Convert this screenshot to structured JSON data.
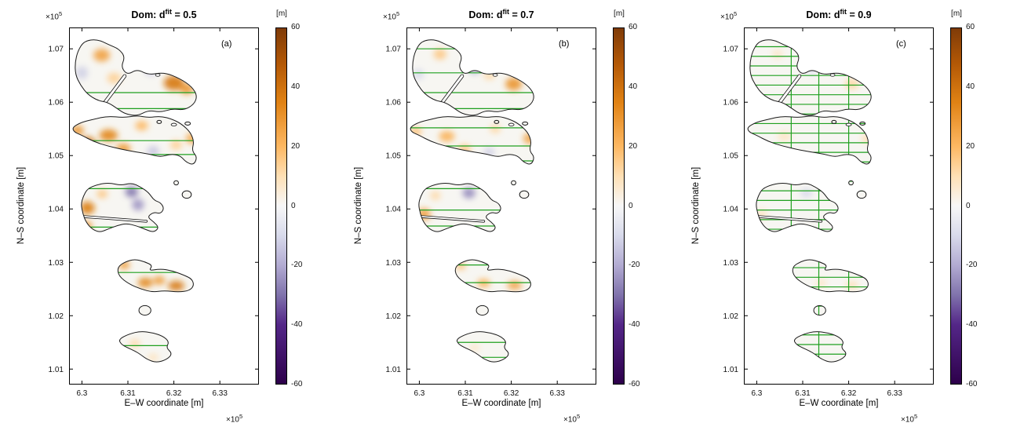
{
  "chart_data": {
    "type": "heatmap",
    "x_label": "E–W coordinate [m]",
    "y_label": "N–S coordinate [m]",
    "axis_exp_base": "×10",
    "axis_exp_power": "5",
    "x_tick_values": [
      6.3,
      6.31,
      6.32,
      6.33
    ],
    "x_tick_labels": [
      "6.3",
      "6.31",
      "6.32",
      "6.33"
    ],
    "y_tick_values": [
      1.01,
      1.02,
      1.03,
      1.04,
      1.05,
      1.06,
      1.07
    ],
    "y_tick_labels": [
      "1.01",
      "1.02",
      "1.03",
      "1.04",
      "1.05",
      "1.06",
      "1.07"
    ],
    "x_range": [
      6.2972,
      6.3385
    ],
    "y_range": [
      1.0071,
      1.074
    ],
    "grid": false,
    "colors": {
      "land": "#f7f6f2",
      "outline": "#1a1a1a",
      "flightline": "#1fa01f",
      "sea": "#ffffff"
    },
    "colorbar": {
      "label": "[m]",
      "min": -60,
      "max": 60,
      "ticks": [
        60,
        40,
        20,
        0,
        -20,
        -40,
        -60
      ],
      "stops": [
        [
          -60,
          "#2d004b"
        ],
        [
          -40,
          "#542788"
        ],
        [
          -30,
          "#8073ac"
        ],
        [
          -20,
          "#b2abd2"
        ],
        [
          -10,
          "#d8daeb"
        ],
        [
          0,
          "#f7f7f7"
        ],
        [
          10,
          "#fee0b6"
        ],
        [
          20,
          "#fdb863"
        ],
        [
          35,
          "#e08214"
        ],
        [
          48,
          "#b35806"
        ],
        [
          60,
          "#7f3b08"
        ]
      ]
    },
    "islands": [
      {
        "name": "north-island",
        "pts": [
          [
            6.2991,
            1.0696
          ],
          [
            6.3005,
            1.0715
          ],
          [
            6.3034,
            1.0718
          ],
          [
            6.306,
            1.0707
          ],
          [
            6.308,
            1.07
          ],
          [
            6.3094,
            1.0685
          ],
          [
            6.3085,
            1.0666
          ],
          [
            6.3099,
            1.0651
          ],
          [
            6.312,
            1.0662
          ],
          [
            6.3145,
            1.0651
          ],
          [
            6.3179,
            1.0656
          ],
          [
            6.3214,
            1.0644
          ],
          [
            6.3239,
            1.0629
          ],
          [
            6.3251,
            1.0612
          ],
          [
            6.3244,
            1.0596
          ],
          [
            6.3222,
            1.0585
          ],
          [
            6.3197,
            1.0588
          ],
          [
            6.3171,
            1.0581
          ],
          [
            6.3145,
            1.0585
          ],
          [
            6.312,
            1.0574
          ],
          [
            6.3094,
            1.0578
          ],
          [
            6.3077,
            1.0588
          ],
          [
            6.3056,
            1.06
          ],
          [
            6.3034,
            1.0603
          ],
          [
            6.3012,
            1.0615
          ],
          [
            6.2997,
            1.0632
          ],
          [
            6.2986,
            1.0651
          ],
          [
            6.2985,
            1.0674
          ]
        ]
      },
      {
        "name": "large-central-island",
        "pts": [
          [
            6.2979,
            1.0553
          ],
          [
            6.3,
            1.0563
          ],
          [
            6.3026,
            1.0568
          ],
          [
            6.3056,
            1.0574
          ],
          [
            6.3091,
            1.0571
          ],
          [
            6.312,
            1.0575
          ],
          [
            6.3145,
            1.0571
          ],
          [
            6.3171,
            1.0574
          ],
          [
            6.3197,
            1.0568
          ],
          [
            6.3217,
            1.0559
          ],
          [
            6.3236,
            1.0544
          ],
          [
            6.3244,
            1.0526
          ],
          [
            6.3239,
            1.0509
          ],
          [
            6.3251,
            1.0497
          ],
          [
            6.3243,
            1.0482
          ],
          [
            6.3226,
            1.0488
          ],
          [
            6.3214,
            1.05
          ],
          [
            6.3193,
            1.0503
          ],
          [
            6.3171,
            1.0497
          ],
          [
            6.3145,
            1.0503
          ],
          [
            6.3115,
            1.0507
          ],
          [
            6.3085,
            1.0512
          ],
          [
            6.3056,
            1.0518
          ],
          [
            6.3026,
            1.0526
          ],
          [
            6.3,
            1.0538
          ],
          [
            6.2983,
            1.0544
          ]
        ]
      },
      {
        "name": "middle-island",
        "pts": [
          [
            6.3012,
            1.0438
          ],
          [
            6.3034,
            1.0446
          ],
          [
            6.306,
            1.0449
          ],
          [
            6.3085,
            1.0444
          ],
          [
            6.3108,
            1.0449
          ],
          [
            6.3128,
            1.0441
          ],
          [
            6.3145,
            1.0431
          ],
          [
            6.3157,
            1.0416
          ],
          [
            6.3171,
            1.0412
          ],
          [
            6.3179,
            1.0401
          ],
          [
            6.3171,
            1.0391
          ],
          [
            6.3156,
            1.0394
          ],
          [
            6.3142,
            1.0385
          ],
          [
            6.3156,
            1.0376
          ],
          [
            6.3168,
            1.0365
          ],
          [
            6.3156,
            1.0356
          ],
          [
            6.3137,
            1.0362
          ],
          [
            6.312,
            1.0368
          ],
          [
            6.3097,
            1.0373
          ],
          [
            6.3077,
            1.0369
          ],
          [
            6.3056,
            1.0362
          ],
          [
            6.3039,
            1.0356
          ],
          [
            6.3022,
            1.0362
          ],
          [
            6.3009,
            1.0375
          ],
          [
            6.3002,
            1.0391
          ],
          [
            6.2998,
            1.0409
          ],
          [
            6.3003,
            1.0424
          ]
        ]
      },
      {
        "name": "lower-island",
        "pts": [
          [
            6.3077,
            1.0291
          ],
          [
            6.3094,
            1.0301
          ],
          [
            6.3115,
            1.0306
          ],
          [
            6.3137,
            1.0301
          ],
          [
            6.3154,
            1.0294
          ],
          [
            6.3145,
            1.0284
          ],
          [
            6.3171,
            1.0288
          ],
          [
            6.3197,
            1.0284
          ],
          [
            6.3222,
            1.0276
          ],
          [
            6.3239,
            1.0269
          ],
          [
            6.3244,
            1.0257
          ],
          [
            6.3234,
            1.0247
          ],
          [
            6.321,
            1.0244
          ],
          [
            6.3179,
            1.0247
          ],
          [
            6.3154,
            1.0244
          ],
          [
            6.3128,
            1.025
          ],
          [
            6.3103,
            1.0259
          ],
          [
            6.308,
            1.0274
          ]
        ]
      },
      {
        "name": "south-island",
        "pts": [
          [
            6.308,
            1.0156
          ],
          [
            6.3103,
            1.0166
          ],
          [
            6.3128,
            1.0171
          ],
          [
            6.3154,
            1.0168
          ],
          [
            6.3176,
            1.0162
          ],
          [
            6.319,
            1.0151
          ],
          [
            6.3183,
            1.014
          ],
          [
            6.3197,
            1.0129
          ],
          [
            6.3185,
            1.0118
          ],
          [
            6.3162,
            1.0112
          ],
          [
            6.3142,
            1.0118
          ],
          [
            6.3128,
            1.0127
          ],
          [
            6.3115,
            1.0134
          ],
          [
            6.3097,
            1.0141
          ],
          [
            6.3085,
            1.0147
          ]
        ]
      }
    ],
    "islets": [
      [
        6.3228,
        1.0427,
        0.001,
        0.0007
      ],
      [
        6.3137,
        1.021,
        0.0013,
        0.0009
      ],
      [
        6.3205,
        1.0449,
        0.0005,
        0.0004
      ],
      [
        6.3168,
        1.0563,
        0.0005,
        0.0003
      ],
      [
        6.323,
        1.056,
        0.0006,
        0.0003
      ]
    ],
    "lakes": [
      [
        6.32,
        1.0558,
        0.0006,
        0.00025
      ],
      [
        6.3165,
        1.0651,
        0.0005,
        0.00025
      ]
    ],
    "channels": [
      {
        "pts": [
          [
            6.3045,
            1.0594
          ],
          [
            6.3093,
            1.0649
          ]
        ],
        "w": 4.6
      },
      {
        "pts": [
          [
            6.2999,
            1.0386
          ],
          [
            6.314,
            1.0377
          ]
        ],
        "w": 3.4
      }
    ],
    "panels": [
      {
        "letter": "(a)",
        "title_prefix": "Dom: d",
        "title_sup": "fit",
        "title_suffix": " = 0.5",
        "title_full": "Dom: d^fit = 0.5",
        "blobs": [
          [
            6.32,
            1.0636,
            0.0022,
            0.0014,
            38
          ],
          [
            6.3228,
            1.0625,
            0.0015,
            0.001,
            30
          ],
          [
            6.3043,
            1.0688,
            0.0018,
            0.0012,
            26
          ],
          [
            6.3105,
            1.0701,
            0.0014,
            0.0009,
            18
          ],
          [
            6.315,
            1.066,
            0.0013,
            0.001,
            -14
          ],
          [
            6.3,
            1.0655,
            0.0013,
            0.0012,
            -12
          ],
          [
            6.307,
            1.0645,
            0.0015,
            0.001,
            14
          ],
          [
            6.299,
            1.0547,
            0.0014,
            0.0009,
            30
          ],
          [
            6.3012,
            1.0523,
            0.0018,
            0.0012,
            40
          ],
          [
            6.3058,
            1.0538,
            0.002,
            0.0011,
            34
          ],
          [
            6.309,
            1.0513,
            0.0016,
            0.001,
            28
          ],
          [
            6.3038,
            1.0497,
            0.0014,
            0.0009,
            24
          ],
          [
            6.313,
            1.0556,
            0.0014,
            0.0009,
            20
          ],
          [
            6.3155,
            1.0508,
            0.0013,
            0.001,
            -14
          ],
          [
            6.324,
            1.0532,
            0.0014,
            0.001,
            24
          ],
          [
            6.3205,
            1.052,
            0.0013,
            0.0009,
            14
          ],
          [
            6.3108,
            1.0432,
            0.0014,
            0.001,
            -30
          ],
          [
            6.3122,
            1.0408,
            0.0013,
            0.0011,
            -24
          ],
          [
            6.3012,
            1.0402,
            0.0016,
            0.0012,
            36
          ],
          [
            6.3008,
            1.0368,
            0.0014,
            0.0009,
            30
          ],
          [
            6.3044,
            1.0428,
            0.0012,
            0.0008,
            16
          ],
          [
            6.3092,
            1.0295,
            0.0012,
            0.0008,
            28
          ],
          [
            6.3138,
            1.0262,
            0.0016,
            0.0009,
            34
          ],
          [
            6.3205,
            1.0256,
            0.0018,
            0.0009,
            38
          ],
          [
            6.3168,
            1.0266,
            0.0013,
            0.0008,
            28
          ],
          [
            6.3115,
            1.0148,
            0.0012,
            0.0007,
            12
          ],
          [
            6.3155,
            1.0122,
            0.0011,
            0.0006,
            10
          ]
        ],
        "hlines": [
          1.0618,
          1.0588,
          1.0528,
          1.0502,
          1.0438,
          1.0366,
          1.0281,
          1.0144
        ],
        "vlines": []
      },
      {
        "letter": "(b)",
        "title_prefix": "Dom: d",
        "title_sup": "fit",
        "title_suffix": " = 0.7",
        "title_full": "Dom: d^fit = 0.7",
        "blobs": [
          [
            6.3205,
            1.0634,
            0.0018,
            0.0012,
            30
          ],
          [
            6.3045,
            1.069,
            0.0014,
            0.001,
            16
          ],
          [
            6.312,
            1.0662,
            0.0013,
            0.001,
            -16
          ],
          [
            6.2998,
            1.0652,
            0.0012,
            0.001,
            -10
          ],
          [
            6.3152,
            1.065,
            0.0012,
            0.0008,
            12
          ],
          [
            6.2992,
            1.0545,
            0.0013,
            0.0008,
            18
          ],
          [
            6.306,
            1.0536,
            0.0017,
            0.001,
            22
          ],
          [
            6.3098,
            1.0512,
            0.0014,
            0.0009,
            16
          ],
          [
            6.324,
            1.0532,
            0.0014,
            0.001,
            26
          ],
          [
            6.3165,
            1.055,
            0.0012,
            0.0008,
            12
          ],
          [
            6.3152,
            1.0506,
            0.0012,
            0.0009,
            -12
          ],
          [
            6.3108,
            1.043,
            0.0014,
            0.001,
            -26
          ],
          [
            6.301,
            1.039,
            0.0015,
            0.0011,
            26
          ],
          [
            6.3035,
            1.0425,
            0.0011,
            0.0008,
            12
          ],
          [
            6.309,
            1.0293,
            0.0011,
            0.0007,
            18
          ],
          [
            6.314,
            1.0261,
            0.0014,
            0.0008,
            22
          ],
          [
            6.3207,
            1.0257,
            0.0016,
            0.0008,
            26
          ],
          [
            6.3062,
            1.0272,
            0.0012,
            0.0007,
            14
          ],
          [
            6.312,
            1.014,
            0.0011,
            0.0006,
            8
          ]
        ],
        "hlines": [
          1.07,
          1.0655,
          1.0618,
          1.0588,
          1.0552,
          1.0518,
          1.049,
          1.0438,
          1.0398,
          1.0368,
          1.0295,
          1.0262,
          1.015,
          1.0122
        ],
        "vlines": []
      },
      {
        "letter": "(c)",
        "title_prefix": "Dom: d",
        "title_sup": "fit",
        "title_suffix": " = 0.9",
        "title_full": "Dom: d^fit = 0.9",
        "blobs": [
          [
            6.3207,
            1.0634,
            0.0015,
            0.001,
            12
          ],
          [
            6.3045,
            1.069,
            0.0012,
            0.0009,
            7
          ],
          [
            6.312,
            1.066,
            0.0012,
            0.0009,
            -7
          ],
          [
            6.306,
            1.0536,
            0.0015,
            0.0009,
            8
          ],
          [
            6.324,
            1.0532,
            0.0012,
            0.0009,
            10
          ],
          [
            6.3108,
            1.043,
            0.0013,
            0.0009,
            -10
          ],
          [
            6.301,
            1.039,
            0.0013,
            0.0009,
            8
          ],
          [
            6.3207,
            1.0257,
            0.0014,
            0.0007,
            10
          ],
          [
            6.314,
            1.0261,
            0.0012,
            0.0007,
            8
          ]
        ],
        "hlines": [
          1.011,
          1.0128,
          1.0146,
          1.0164,
          1.0182,
          1.02,
          1.0218,
          1.0236,
          1.0254,
          1.0272,
          1.029,
          1.0308,
          1.0326,
          1.0344,
          1.0362,
          1.038,
          1.0398,
          1.0416,
          1.0434,
          1.0452,
          1.047,
          1.0488,
          1.0506,
          1.0524,
          1.0542,
          1.056,
          1.0578,
          1.0596,
          1.0614,
          1.0632,
          1.065,
          1.0668,
          1.0686,
          1.0704
        ],
        "vlines": [
          6.3075,
          6.3135,
          6.32
        ]
      }
    ]
  }
}
